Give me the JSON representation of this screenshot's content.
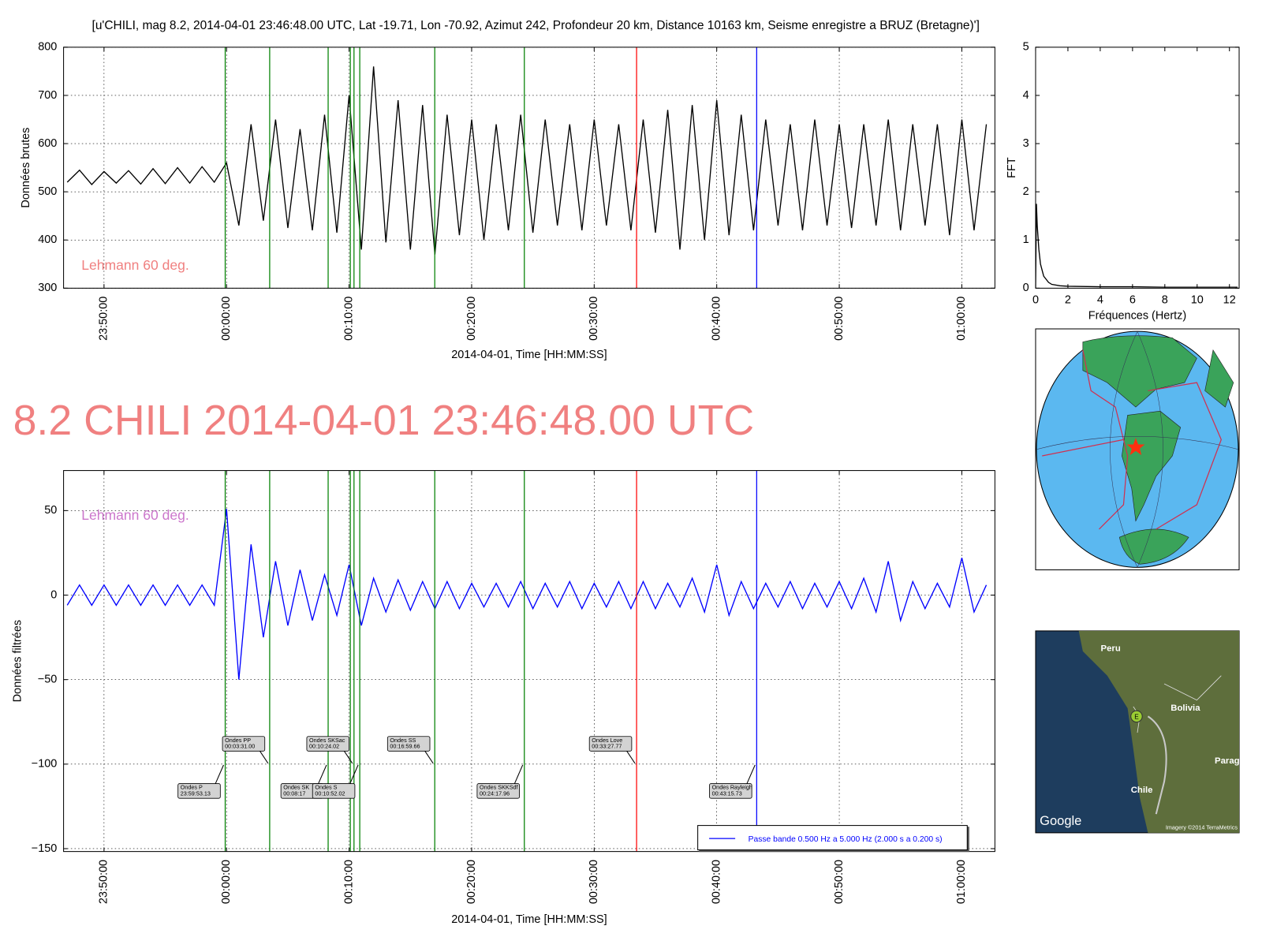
{
  "figure": {
    "headline": "8.2 CHILI 2014-04-01 23:46:48.00 UTC"
  },
  "maps": {
    "globe": {},
    "regional": {
      "labels": [
        "Peru",
        "Bolivia",
        "Parag",
        "Chile"
      ],
      "marker": "E",
      "logo": "Google",
      "credit": "Imagery ©2014 TerraMetrics"
    }
  },
  "chart_data": [
    {
      "type": "line",
      "title": "[u'CHILI, mag 8.2, 2014-04-01 23:46:48.00 UTC, Lat -19.71, Lon -70.92, Azimut 242, Profondeur 20 km, Distance 10163 km, Seisme enregistre a BRUZ (Bretagne)']",
      "ylabel": "Données brutes",
      "xlabel": "2014-04-01, Time [HH:MM:SS]",
      "annotation": "Lehmann 60 deg.",
      "annotation_color": "#f08080",
      "grid": true,
      "xtick_rotation": 90,
      "xlim": [
        -13.3,
        62.7
      ],
      "ylim": [
        300,
        800
      ],
      "xticks": [
        {
          "value": -10,
          "label": "23:50:00"
        },
        {
          "value": 0,
          "label": "00:00:00"
        },
        {
          "value": 10,
          "label": "00:10:00"
        },
        {
          "value": 20,
          "label": "00:20:00"
        },
        {
          "value": 30,
          "label": "00:30:00"
        },
        {
          "value": 40,
          "label": "00:40:00"
        },
        {
          "value": 50,
          "label": "00:50:00"
        },
        {
          "value": 60,
          "label": "01:00:00"
        }
      ],
      "yticks": [
        300,
        400,
        500,
        600,
        700,
        800
      ],
      "x": [
        -13,
        -12,
        -11,
        -10,
        -9,
        -8,
        -7,
        -6,
        -5,
        -4,
        -3,
        -2,
        -1,
        0,
        1,
        2,
        3,
        4,
        5,
        6,
        7,
        8,
        9,
        10,
        11,
        12,
        13,
        14,
        15,
        16,
        17,
        18,
        19,
        20,
        21,
        22,
        23,
        24,
        25,
        26,
        27,
        28,
        29,
        30,
        31,
        32,
        33,
        34,
        35,
        36,
        37,
        38,
        39,
        40,
        41,
        42,
        43,
        44,
        45,
        46,
        47,
        48,
        49,
        50,
        51,
        52,
        53,
        54,
        55,
        56,
        57,
        58,
        59,
        60,
        61,
        62
      ],
      "series": [
        {
          "color": "#000000",
          "values": [
            520,
            545,
            515,
            542,
            518,
            544,
            516,
            548,
            517,
            550,
            518,
            552,
            520,
            560,
            430,
            640,
            440,
            650,
            425,
            630,
            420,
            660,
            415,
            700,
            380,
            760,
            395,
            690,
            380,
            680,
            370,
            660,
            410,
            650,
            400,
            640,
            420,
            660,
            415,
            650,
            430,
            640,
            420,
            650,
            430,
            640,
            420,
            650,
            415,
            670,
            380,
            680,
            400,
            690,
            410,
            660,
            420,
            650,
            430,
            640,
            420,
            650,
            430,
            640,
            425,
            640,
            430,
            650,
            420,
            640,
            430,
            640,
            410,
            650,
            420,
            640
          ]
        }
      ],
      "vlines": [
        {
          "x": -0.11,
          "color": "#008000"
        },
        {
          "x": 3.52,
          "color": "#008000"
        },
        {
          "x": 8.29,
          "color": "#008000"
        },
        {
          "x": 10.1,
          "color": "#008000"
        },
        {
          "x": 10.4,
          "color": "#008000"
        },
        {
          "x": 10.87,
          "color": "#008000"
        },
        {
          "x": 16.99,
          "color": "#008000"
        },
        {
          "x": 24.3,
          "color": "#008000"
        },
        {
          "x": 33.46,
          "color": "#ff0000"
        },
        {
          "x": 43.26,
          "color": "#0000ff"
        }
      ]
    },
    {
      "type": "line",
      "ylabel": "Données filtrées",
      "xlabel": "2014-04-01, Time [HH:MM:SS]",
      "annotation": "Lehmann 60 deg.",
      "annotation_color": "#cc77cc",
      "grid": true,
      "xtick_rotation": 90,
      "legend": "lower right",
      "arrow_y": -100,
      "xlim": [
        -13.3,
        62.7
      ],
      "ylim": [
        -151.7,
        73.7
      ],
      "xticks": [
        {
          "value": -10,
          "label": "23:50:00"
        },
        {
          "value": 0,
          "label": "00:00:00"
        },
        {
          "value": 10,
          "label": "00:10:00"
        },
        {
          "value": 20,
          "label": "00:20:00"
        },
        {
          "value": 30,
          "label": "00:30:00"
        },
        {
          "value": 40,
          "label": "00:40:00"
        },
        {
          "value": 50,
          "label": "00:50:00"
        },
        {
          "value": 60,
          "label": "01:00:00"
        }
      ],
      "yticks": [
        {
          "value": -150,
          "label": "−150"
        },
        {
          "value": -100,
          "label": "−100"
        },
        {
          "value": -50,
          "label": "−50"
        },
        0,
        50
      ],
      "x": [
        -13,
        -12,
        -11,
        -10,
        -9,
        -8,
        -7,
        -6,
        -5,
        -4,
        -3,
        -2,
        -1,
        0,
        1,
        2,
        3,
        4,
        5,
        6,
        7,
        8,
        9,
        10,
        11,
        12,
        13,
        14,
        15,
        16,
        17,
        18,
        19,
        20,
        21,
        22,
        23,
        24,
        25,
        26,
        27,
        28,
        29,
        30,
        31,
        32,
        33,
        34,
        35,
        36,
        37,
        38,
        39,
        40,
        41,
        42,
        43,
        44,
        45,
        46,
        47,
        48,
        49,
        50,
        51,
        52,
        53,
        54,
        55,
        56,
        57,
        58,
        59,
        60,
        61,
        62
      ],
      "series": [
        {
          "name": "Passe bande 0.500 Hz a 5.000 Hz (2.000 s a 0.200 s)",
          "color": "#0000ff",
          "values": [
            -6,
            6,
            -6,
            6,
            -6,
            6,
            -6,
            6,
            -6,
            6,
            -6,
            6,
            -6,
            51,
            -50,
            30,
            -25,
            20,
            -18,
            15,
            -15,
            12,
            -12,
            18,
            -18,
            10,
            -10,
            9,
            -9,
            8,
            -8,
            8,
            -8,
            7,
            -7,
            7,
            -7,
            8,
            -8,
            7,
            -7,
            8,
            -8,
            7,
            -7,
            8,
            -8,
            8,
            -8,
            7,
            -7,
            10,
            -10,
            18,
            -12,
            8,
            -8,
            7,
            -7,
            8,
            -8,
            7,
            -7,
            8,
            -8,
            10,
            -10,
            20,
            -15,
            8,
            -8,
            7,
            -7,
            22,
            -10,
            6
          ]
        }
      ],
      "vlines": [
        {
          "x": -0.11,
          "color": "#008000",
          "label": [
            "Ondes P",
            "23:59:53.13"
          ]
        },
        {
          "x": 3.52,
          "color": "#008000",
          "label": [
            "Ondes PP",
            "00:03:31.00"
          ]
        },
        {
          "x": 8.29,
          "color": "#008000",
          "label": [
            "Ondes SK",
            "00:08:17"
          ]
        },
        {
          "x": 10.1,
          "color": "#008000"
        },
        {
          "x": 10.4,
          "color": "#008000",
          "label": [
            "Ondes SKSac",
            "00:10:24.02"
          ]
        },
        {
          "x": 10.87,
          "color": "#008000",
          "label": [
            "Ondes S",
            "00:10:52.02"
          ]
        },
        {
          "x": 16.99,
          "color": "#008000",
          "label": [
            "Ondes SS",
            "00:16:59.66"
          ]
        },
        {
          "x": 24.3,
          "color": "#008000",
          "label": [
            "Ondes SKKSdf",
            "00:24:17.96"
          ]
        },
        {
          "x": 33.46,
          "color": "#ff0000",
          "label": [
            "Ondes Love",
            "00:33:27.77"
          ]
        },
        {
          "x": 43.26,
          "color": "#0000ff",
          "label": [
            "Ondes Rayleigh",
            "00:43:15.73"
          ]
        }
      ]
    },
    {
      "type": "line",
      "ylabel": "FFT",
      "xlabel": "Fréquences (Hertz)",
      "grid": false,
      "xlim": [
        0,
        12.6
      ],
      "ylim": [
        0,
        5
      ],
      "xticks": [
        0,
        2,
        4,
        6,
        8,
        10,
        12
      ],
      "yticks": [
        0,
        1,
        2,
        3,
        4,
        5
      ],
      "x": [
        0,
        0.05,
        0.1,
        0.2,
        0.3,
        0.5,
        0.8,
        1,
        1.5,
        2,
        4,
        6,
        8,
        10,
        12,
        12.5
      ],
      "series": [
        {
          "color": "#000000",
          "values": [
            0,
            1.75,
            1.3,
            0.8,
            0.5,
            0.25,
            0.12,
            0.08,
            0.05,
            0.04,
            0.03,
            0.03,
            0.02,
            0.02,
            0.02,
            0.02
          ]
        }
      ]
    }
  ]
}
